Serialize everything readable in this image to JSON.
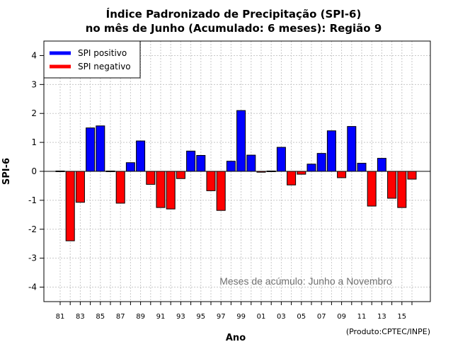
{
  "chart_data": {
    "type": "bar",
    "title": "Índice Padronizado de Precipitação (SPI-6)",
    "subtitle": "no mês de Junho (Acumulado: 6 meses): Região 9",
    "xlabel": "Ano",
    "ylabel": "SPI-6",
    "ylim": [
      -4.5,
      4.5
    ],
    "yticks": [
      -4,
      -3,
      -2,
      -1,
      0,
      1,
      2,
      3,
      4
    ],
    "grid": true,
    "legend_position": "top-left",
    "x": [
      1981,
      1982,
      1983,
      1984,
      1985,
      1986,
      1987,
      1988,
      1989,
      1990,
      1991,
      1992,
      1993,
      1994,
      1995,
      1996,
      1997,
      1998,
      1999,
      2000,
      2001,
      2002,
      2003,
      2004,
      2005,
      2006,
      2007,
      2008,
      2009,
      2010,
      2011,
      2012,
      2013,
      2014,
      2015,
      2016
    ],
    "xtick_labels": [
      "81",
      "83",
      "85",
      "87",
      "89",
      "91",
      "93",
      "95",
      "97",
      "99",
      "01",
      "03",
      "05",
      "07",
      "09",
      "11",
      "13",
      "15"
    ],
    "values": [
      0.02,
      -2.4,
      -1.07,
      1.5,
      1.57,
      0.0,
      -1.1,
      0.3,
      1.05,
      -0.45,
      -1.25,
      -1.3,
      -0.25,
      0.7,
      0.55,
      -0.67,
      -1.35,
      0.35,
      2.1,
      0.56,
      -0.03,
      0.02,
      0.83,
      -0.47,
      -0.1,
      0.25,
      0.62,
      1.4,
      -0.22,
      1.55,
      0.28,
      -1.2,
      0.45,
      -0.93,
      -1.25,
      -0.27
    ],
    "series": [
      {
        "name": "SPI positivo",
        "color": "#0000ff"
      },
      {
        "name": "SPI negativo",
        "color": "#ff0000"
      }
    ],
    "annotation": "Meses de acúmulo: Junho a Novembro",
    "credit": "(Produto:CPTEC/INPE)"
  }
}
